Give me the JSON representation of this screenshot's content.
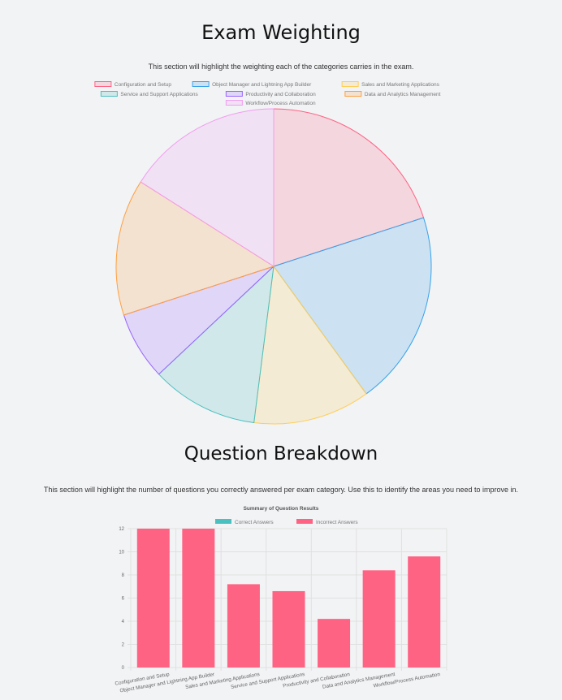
{
  "section1": {
    "title": "Exam Weighting",
    "description": "This section will highlight the weighting each of the categories carries in the exam."
  },
  "section2": {
    "title": "Question Breakdown",
    "description": "This section will highlight the number of questions you correctly answered per exam category. Use this to identify the areas you need to improve in."
  },
  "chart_data": [
    {
      "type": "pie",
      "legend_position": "top",
      "categories": [
        "Configuration and Setup",
        "Object Manager and Lightning App Builder",
        "Sales and Marketing Applications",
        "Service and Support Applications",
        "Productivity and Collaboration",
        "Data and Analytics Management",
        "Workflow/Process Automation"
      ],
      "values": [
        20,
        20,
        12,
        11,
        7,
        14,
        16
      ],
      "colors": [
        "#ff6384",
        "#36a2eb",
        "#ffce56",
        "#4bc0c0",
        "#9966ff",
        "#ff9f40",
        "#f29cf2"
      ]
    },
    {
      "type": "bar",
      "title": "Summary of Question Results",
      "legend_position": "top",
      "categories": [
        "Configuration and Setup",
        "Object Manager and Lightning App Builder",
        "Sales and Marketing Applications",
        "Service and Support Applications",
        "Productivity and Collaboration",
        "Data and Analytics Management",
        "Workflow/Process Automation"
      ],
      "series": [
        {
          "name": "Correct Answers",
          "color": "#4bc0c0",
          "values": [
            0,
            0,
            0,
            0,
            0,
            0,
            0
          ]
        },
        {
          "name": "Incorrect Answers",
          "color": "#ff6384",
          "values": [
            12,
            12,
            7.2,
            6.6,
            4.2,
            8.4,
            9.6
          ]
        }
      ],
      "ylim": [
        0,
        12
      ],
      "yticks": [
        "0",
        "2",
        "4",
        "6",
        "8",
        "10",
        "12"
      ],
      "grid": true
    }
  ]
}
